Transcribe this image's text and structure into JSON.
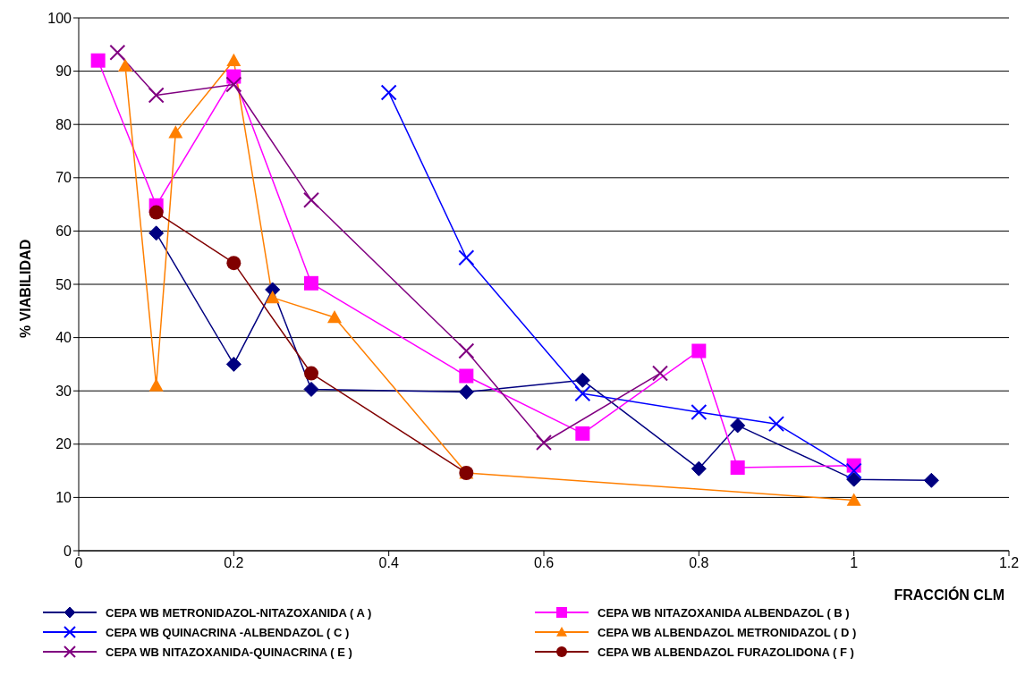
{
  "chart_data": {
    "type": "line",
    "xlabel": "FRACCIÓN CLM",
    "ylabel": "% VIABILIDAD",
    "xlim": [
      0,
      1.2
    ],
    "xticks": [
      0,
      0.2,
      0.4,
      0.6,
      0.8,
      1,
      1.2
    ],
    "ylim": [
      0,
      100
    ],
    "yticks": [
      0,
      10,
      20,
      30,
      40,
      50,
      60,
      70,
      80,
      90,
      100
    ],
    "grid": "y",
    "legend": "bottom",
    "line_style": "solid",
    "series": [
      {
        "name": "CEPA WB METRONIDAZOL-NITAZOXANIDA ( A )",
        "color": "#000080",
        "marker": "diamond",
        "x": [
          0.1,
          0.2,
          0.25,
          0.3,
          0.5,
          0.65,
          0.8,
          0.85,
          1.0,
          1.1
        ],
        "values": [
          59.6,
          35,
          49,
          30.3,
          29.8,
          32,
          15.4,
          23.5,
          13.4,
          13.2
        ]
      },
      {
        "name": "CEPA WB NITAZOXANIDA ALBENDAZOL ( B )",
        "color": "#ff00ff",
        "marker": "square",
        "x": [
          0.025,
          0.1,
          0.2,
          0.3,
          0.5,
          0.65,
          0.8,
          0.85,
          1.0
        ],
        "values": [
          92,
          64.8,
          89,
          50.2,
          32.8,
          22,
          37.5,
          15.6,
          16
        ]
      },
      {
        "name": "CEPA WB QUINACRINA -ALBENDAZOL ( C )",
        "color": "#0000ff",
        "marker": "cross",
        "x": [
          0.4,
          0.5,
          0.65,
          0.8,
          0.9,
          1.0
        ],
        "values": [
          86,
          55,
          29.5,
          26,
          23.8,
          15
        ]
      },
      {
        "name": "CEPA WB ALBENDAZOL METRONIDAZOL ( D )",
        "color": "#ff7f00",
        "marker": "triangle",
        "x": [
          0.06,
          0.1,
          0.125,
          0.2,
          0.25,
          0.33,
          0.5,
          1.0
        ],
        "values": [
          91,
          31,
          78.5,
          92,
          47.5,
          43.8,
          14.6,
          9.5
        ]
      },
      {
        "name": "CEPA WB NITAZOXANIDA-QUINACRINA ( E )",
        "color": "#800080",
        "marker": "cross",
        "x": [
          0.05,
          0.1,
          0.2,
          0.3,
          0.5,
          0.6,
          0.75
        ],
        "values": [
          93.5,
          85.5,
          87.5,
          65.8,
          37.5,
          20.3,
          33.3
        ]
      },
      {
        "name": "CEPA WB ALBENDAZOL FURAZOLIDONA ( F )",
        "color": "#800000",
        "marker": "circle",
        "x": [
          0.1,
          0.2,
          0.3,
          0.5
        ],
        "values": [
          63.5,
          54,
          33.3,
          14.6
        ]
      }
    ]
  }
}
